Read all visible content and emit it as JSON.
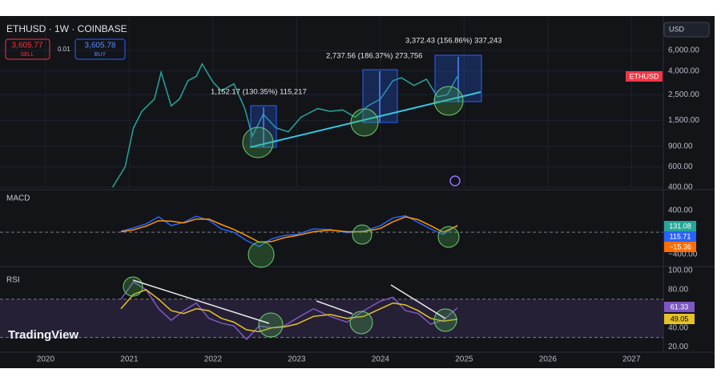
{
  "header": {
    "symbol": "ETHUSD · 1W · COINBASE",
    "sell_price": "3,605.77",
    "sell_label": "SELL",
    "spread": "0.01",
    "buy_price": "3,605.78",
    "buy_label": "BUY",
    "currency": "USD",
    "price_tag": "ETHUSD",
    "logo": "TradingView"
  },
  "chart_data": [
    {
      "type": "line",
      "name": "price",
      "log_scale": true,
      "grid": true,
      "x": [
        2020.8,
        2020.95,
        2021.05,
        2021.15,
        2021.3,
        2021.38,
        2021.5,
        2021.6,
        2021.7,
        2021.8,
        2021.87,
        2022.0,
        2022.1,
        2022.25,
        2022.38,
        2022.47,
        2022.6,
        2022.75,
        2022.9,
        2023.05,
        2023.25,
        2023.4,
        2023.55,
        2023.7,
        2023.85,
        2024.0,
        2024.15,
        2024.25,
        2024.4,
        2024.55,
        2024.68,
        2024.8,
        2024.92
      ],
      "series": [
        {
          "name": "ETHUSD",
          "color": "#26a69a",
          "values": [
            400,
            600,
            1300,
            1800,
            2300,
            3900,
            2000,
            2300,
            3300,
            3600,
            4600,
            3200,
            2700,
            3100,
            1900,
            1100,
            1700,
            1300,
            1200,
            1600,
            1900,
            1800,
            1850,
            1600,
            2000,
            2300,
            3300,
            3500,
            3000,
            3400,
            2400,
            2500,
            3600
          ]
        }
      ],
      "xlim": [
        2019.455,
        2027.38
      ],
      "xticks": [
        2020,
        2021,
        2022,
        2023,
        2024,
        2025,
        2026,
        2027
      ],
      "ylim": [
        400,
        11500
      ],
      "yticks": [
        {
          "value": 6000,
          "label": "6,000.00"
        },
        {
          "value": 4000,
          "label": "4,000.00"
        },
        {
          "value": 2500,
          "label": "2,500.00"
        },
        {
          "value": 1500,
          "label": "1,500.00"
        },
        {
          "value": 900,
          "label": "900.00"
        },
        {
          "value": 600,
          "label": "600.00"
        },
        {
          "value": 400,
          "label": "400.00"
        }
      ],
      "annotations": [
        "1,152.17 (130.35%) 115,217",
        "2,737.56 (186.37%) 273,756",
        "3,372.43 (156.86%) 337,243"
      ]
    },
    {
      "type": "line",
      "name": "MACD",
      "x": [
        2020.9,
        2021.05,
        2021.2,
        2021.35,
        2021.5,
        2021.65,
        2021.8,
        2021.95,
        2022.1,
        2022.25,
        2022.4,
        2022.55,
        2022.7,
        2022.85,
        2023.0,
        2023.2,
        2023.4,
        2023.6,
        2023.8,
        2024.0,
        2024.15,
        2024.3,
        2024.45,
        2024.6,
        2024.75,
        2024.92
      ],
      "series": [
        {
          "name": "MACD",
          "color": "#2962ff",
          "values": [
            20,
            80,
            150,
            280,
            120,
            180,
            290,
            220,
            60,
            0,
            -150,
            -260,
            -120,
            -60,
            -40,
            60,
            50,
            -10,
            20,
            120,
            260,
            300,
            180,
            60,
            -40,
            131
          ]
        },
        {
          "name": "Signal",
          "color": "#ff9800",
          "values": [
            10,
            45,
            110,
            210,
            200,
            170,
            240,
            240,
            140,
            50,
            -60,
            -180,
            -170,
            -100,
            -60,
            10,
            40,
            10,
            10,
            70,
            190,
            280,
            230,
            120,
            0,
            116
          ]
        }
      ],
      "xlim": [
        2019.455,
        2027.38
      ],
      "ylim": [
        -580,
        730
      ],
      "yticks": [
        {
          "value": 400,
          "label": "400.00"
        },
        {
          "value": -400,
          "label": "−400.00"
        }
      ],
      "badges": [
        "131.08",
        "115.71",
        "−15.36"
      ]
    },
    {
      "type": "line",
      "name": "RSI",
      "x": [
        2020.9,
        2021.05,
        2021.2,
        2021.35,
        2021.5,
        2021.65,
        2021.8,
        2021.95,
        2022.1,
        2022.25,
        2022.4,
        2022.55,
        2022.7,
        2022.85,
        2023.0,
        2023.2,
        2023.4,
        2023.6,
        2023.8,
        2024.0,
        2024.15,
        2024.3,
        2024.45,
        2024.6,
        2024.75,
        2024.92
      ],
      "series": [
        {
          "name": "RSI",
          "color": "#7e57c2",
          "values": [
            70,
            88,
            80,
            60,
            48,
            58,
            66,
            50,
            45,
            42,
            28,
            42,
            40,
            42,
            50,
            60,
            52,
            46,
            58,
            68,
            72,
            58,
            55,
            44,
            48,
            61
          ]
        },
        {
          "name": "RSI MA",
          "color": "#e6c229",
          "values": [
            60,
            75,
            80,
            70,
            58,
            55,
            60,
            58,
            50,
            46,
            38,
            36,
            40,
            41,
            44,
            52,
            54,
            50,
            52,
            60,
            66,
            64,
            58,
            50,
            47,
            49
          ]
        }
      ],
      "xlim": [
        2019.455,
        2027.38
      ],
      "ylim": [
        2,
        102.5
      ],
      "band": [
        30,
        70
      ],
      "yticks": [
        {
          "value": 100,
          "label": "100.00"
        },
        {
          "value": 80,
          "label": "80.00"
        },
        {
          "value": 40,
          "label": "40.00"
        },
        {
          "value": 20,
          "label": "20.00"
        }
      ],
      "badges": [
        "61.33",
        "49.05"
      ]
    }
  ]
}
